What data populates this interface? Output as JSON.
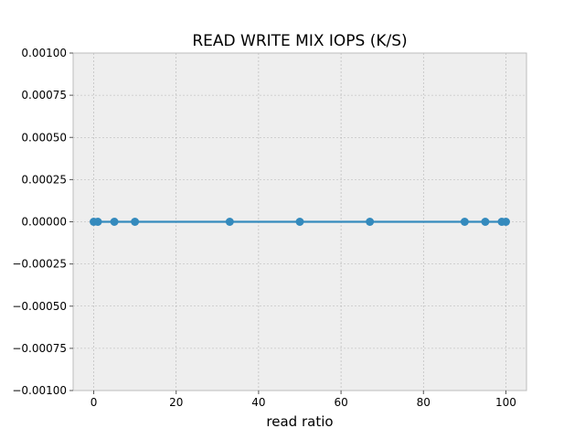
{
  "chart_data": {
    "type": "line",
    "title": "READ WRITE MIX IOPS (K/S)",
    "xlabel": "read ratio",
    "ylabel": "",
    "xlim": [
      -5,
      105
    ],
    "ylim": [
      -0.001,
      0.001
    ],
    "grid": true,
    "x_ticks": [
      0,
      20,
      40,
      60,
      80,
      100
    ],
    "x_tick_labels": [
      "0",
      "20",
      "40",
      "60",
      "80",
      "100"
    ],
    "y_ticks": [
      -0.001,
      -0.00075,
      -0.0005,
      -0.00025,
      0,
      0.00025,
      0.0005,
      0.00075,
      0.001
    ],
    "y_tick_labels": [
      "−0.00100",
      "−0.00075",
      "−0.00050",
      "−0.00025",
      "0.00000",
      "0.00025",
      "0.00050",
      "0.00075",
      "0.00100"
    ],
    "series": [
      {
        "x": [
          0,
          1,
          5,
          10,
          33,
          50,
          67,
          90,
          95,
          99,
          100
        ],
        "y": [
          0,
          0,
          0,
          0,
          0,
          0,
          0,
          0,
          0,
          0,
          0
        ],
        "color": "#348abd",
        "marker": "circle"
      }
    ],
    "colors": {
      "plot_background": "#eeeeee",
      "grid": "#b2b2b2",
      "axes_edge": "#bcbcbc"
    }
  }
}
